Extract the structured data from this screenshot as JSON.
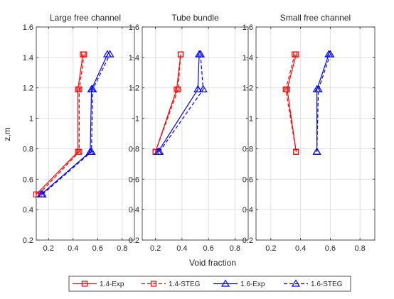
{
  "chart_data": {
    "type": "line",
    "ylabel": "z,m",
    "xlabel": "Void fraction",
    "xlim": [
      0.1,
      0.9
    ],
    "ylim": [
      0.2,
      1.6
    ],
    "x_ticks": [
      0.2,
      0.4,
      0.6,
      0.8
    ],
    "x_tick_labels": [
      "0.2",
      "0.4",
      "0.6",
      "0.8"
    ],
    "y_ticks": [
      0.2,
      0.4,
      0.6,
      0.8,
      1.0,
      1.2,
      1.4,
      1.6
    ],
    "y_tick_labels": [
      "0.2",
      "0.4",
      "0.6",
      "0.8",
      "1",
      "1.2",
      "1.4",
      "1.6"
    ],
    "grid": true,
    "legend_position": "bottom-center",
    "colors": {
      "series_1_4": "#ff0000",
      "series_1_6": "#0000ff",
      "axis": "#262626",
      "grid": "#dfdfdf"
    },
    "series_meta": [
      {
        "name": "1.4-Exp",
        "color": "#ff0000",
        "dashed": false,
        "marker": "square"
      },
      {
        "name": "1.4-STEG",
        "color": "#ff0000",
        "dashed": true,
        "marker": "square"
      },
      {
        "name": "1.6-Exp",
        "color": "#0000ff",
        "dashed": false,
        "marker": "triangle"
      },
      {
        "name": "1.6-STEG",
        "color": "#0000ff",
        "dashed": true,
        "marker": "triangle"
      }
    ],
    "panels": [
      {
        "title": "Large free channel",
        "series": [
          {
            "name": "1.4-Exp",
            "points": [
              [
                0.1,
                0.5
              ],
              [
                0.44,
                0.78
              ],
              [
                0.44,
                1.19
              ],
              [
                0.48,
                1.42
              ]
            ]
          },
          {
            "name": "1.4-STEG",
            "points": [
              [
                0.12,
                0.5
              ],
              [
                0.45,
                0.78
              ],
              [
                0.45,
                1.19
              ],
              [
                0.49,
                1.42
              ]
            ]
          },
          {
            "name": "1.6-Exp",
            "points": [
              [
                0.14,
                0.5
              ],
              [
                0.54,
                0.78
              ],
              [
                0.55,
                1.19
              ],
              [
                0.68,
                1.42
              ]
            ]
          },
          {
            "name": "1.6-STEG",
            "points": [
              [
                0.15,
                0.5
              ],
              [
                0.55,
                0.78
              ],
              [
                0.56,
                1.19
              ],
              [
                0.7,
                1.42
              ]
            ]
          }
        ]
      },
      {
        "title": "Tube bundle",
        "series": [
          {
            "name": "1.4-Exp",
            "points": [
              [
                0.2,
                0.78
              ],
              [
                0.36,
                1.19
              ],
              [
                0.39,
                1.42
              ]
            ]
          },
          {
            "name": "1.4-STEG",
            "points": [
              [
                0.2,
                0.78
              ],
              [
                0.37,
                1.19
              ],
              [
                0.39,
                1.42
              ]
            ]
          },
          {
            "name": "1.6-Exp",
            "points": [
              [
                0.22,
                0.78
              ],
              [
                0.52,
                1.19
              ],
              [
                0.53,
                1.42
              ]
            ]
          },
          {
            "name": "1.6-STEG",
            "points": [
              [
                0.23,
                0.78
              ],
              [
                0.56,
                1.19
              ],
              [
                0.54,
                1.42
              ]
            ]
          }
        ]
      },
      {
        "title": "Small free channel",
        "series": [
          {
            "name": "1.4-Exp",
            "points": [
              [
                0.37,
                0.78
              ],
              [
                0.31,
                1.19
              ],
              [
                0.37,
                1.42
              ]
            ]
          },
          {
            "name": "1.4-STEG",
            "points": [
              [
                0.37,
                0.78
              ],
              [
                0.3,
                1.19
              ],
              [
                0.36,
                1.42
              ]
            ]
          },
          {
            "name": "1.6-Exp",
            "points": [
              [
                0.51,
                0.78
              ],
              [
                0.51,
                1.19
              ],
              [
                0.59,
                1.42
              ]
            ]
          },
          {
            "name": "1.6-STEG",
            "points": [
              [
                0.51,
                0.78
              ],
              [
                0.52,
                1.19
              ],
              [
                0.6,
                1.42
              ]
            ]
          }
        ]
      }
    ]
  }
}
